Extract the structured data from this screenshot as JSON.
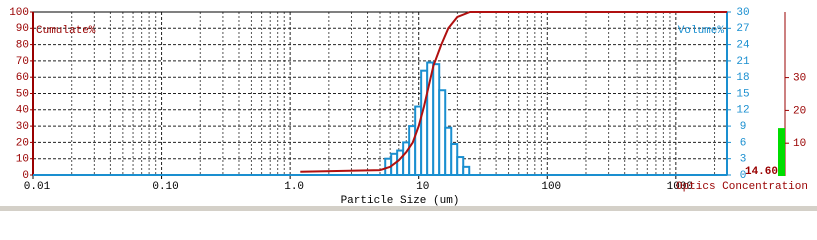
{
  "chart_data": [
    {
      "type": "histogram",
      "xlabel": "Particle Size (um)",
      "ylabel": "Cumulate%",
      "y2label": "Volume%",
      "log_x": true,
      "grid": true,
      "xlim": [
        0.01,
        2500
      ],
      "xticks": [
        0.01,
        {
          "value": 0.1,
          "label": "0.10"
        },
        {
          "value": 1,
          "label": "1.0"
        },
        10,
        100,
        1000
      ],
      "ylim": [
        0,
        100
      ],
      "yticks": [
        0,
        10,
        20,
        30,
        40,
        50,
        60,
        70,
        80,
        90,
        100
      ],
      "y2lim": [
        0,
        30
      ],
      "y2ticks": [
        0,
        3,
        6,
        9,
        12,
        15,
        18,
        21,
        24,
        27,
        30
      ],
      "histogram": {
        "axis": "y2",
        "color": "#1a8fd0",
        "bins": [
          5.49,
          6.11,
          6.8,
          7.57,
          8.43,
          9.39,
          10.45,
          11.64,
          12.97,
          14.44,
          16.08,
          17.91,
          19.94,
          22.2,
          24.72
        ],
        "values": [
          3,
          3.9,
          4.5,
          6,
          9,
          12.6,
          19.2,
          20.7,
          20.4,
          15.6,
          8.7,
          5.7,
          3.3,
          1.5
        ]
      },
      "line": {
        "color": "#b01010",
        "x": [
          1.2,
          5,
          6,
          7,
          8,
          9,
          10,
          11,
          12,
          13,
          15,
          17,
          20,
          25,
          2500
        ],
        "values": [
          2,
          3,
          5,
          9,
          14,
          20,
          30,
          42,
          55,
          67,
          80,
          90,
          97,
          100,
          100
        ]
      }
    },
    {
      "type": "bar",
      "xlabel": "Optics Concentration",
      "values": [
        14.6
      ],
      "value_labels": [
        "14.60"
      ],
      "color": "#00dd00",
      "ylim": [
        0,
        50
      ],
      "yticks": [
        10,
        20,
        30
      ]
    }
  ]
}
